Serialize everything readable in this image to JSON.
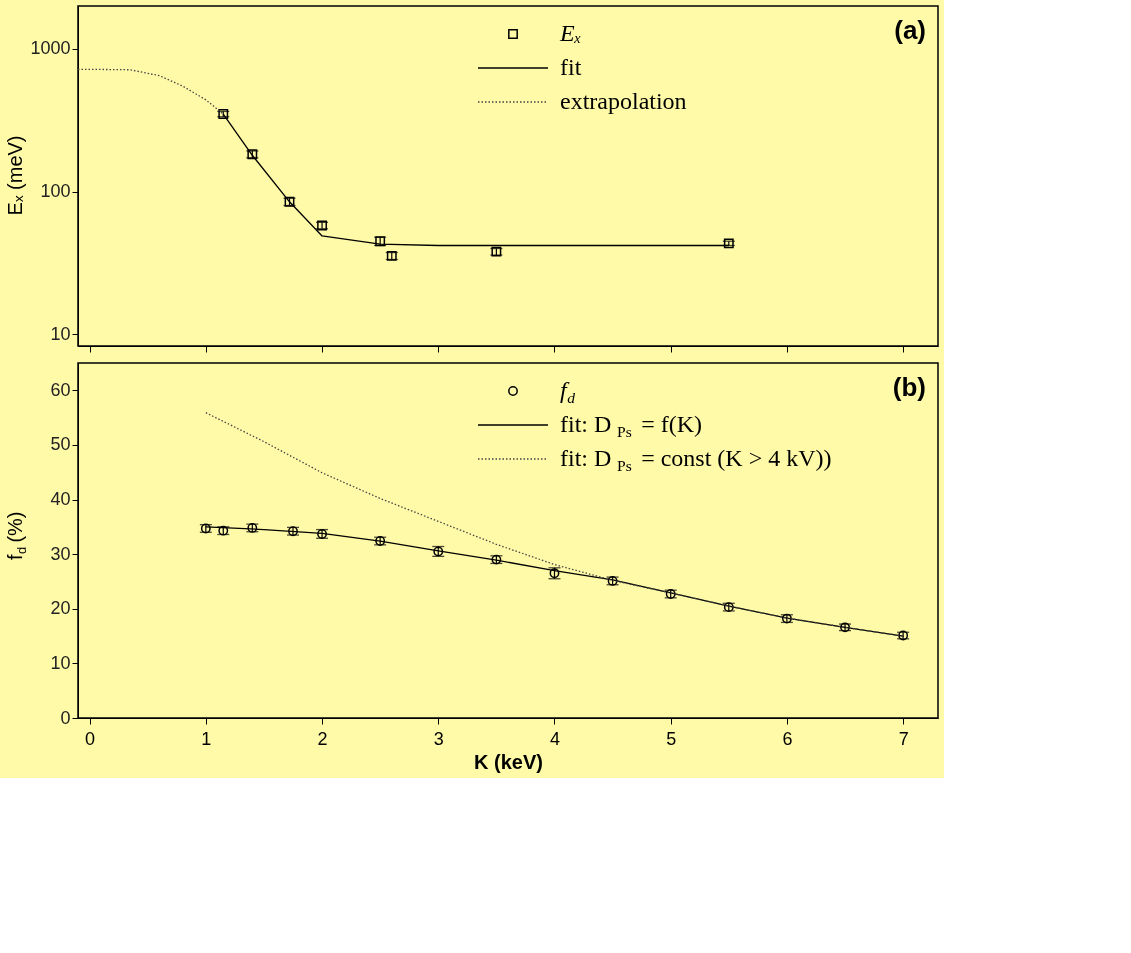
{
  "chart_data": [
    {
      "type": "scatter",
      "ylabel": "Eₓ (meV)",
      "log": "y",
      "xlim": [
        -0.1,
        7.3
      ],
      "xticks": [
        0,
        1,
        2,
        3,
        4,
        5,
        6,
        7
      ],
      "ylim": [
        8.3,
        2000
      ],
      "yticks": [
        10,
        100,
        1000
      ],
      "tick_labels": "y",
      "grid": false,
      "legend": "top right",
      "annotations": [
        "(a)"
      ],
      "series": [
        {
          "name": "Eₓ",
          "marker": "square",
          "color": "#000000",
          "x": [
            1.15,
            1.4,
            1.72,
            2.0,
            2.5,
            2.6,
            3.5,
            5.5
          ],
          "values": [
            350,
            183,
            85,
            58,
            45,
            35.5,
            38,
            43.5
          ],
          "errors": [
            15,
            10,
            5,
            3,
            3,
            2,
            2,
            1.5
          ]
        },
        {
          "name": "fit",
          "type": "line",
          "line_style": "solid",
          "color": "#000000",
          "x": [
            1.15,
            1.4,
            1.72,
            2.0,
            2.5,
            3.0,
            4.0,
            5.5
          ],
          "values": [
            350,
            180,
            85,
            49,
            43,
            42,
            42,
            42
          ]
        },
        {
          "name": "extrapolation",
          "type": "line",
          "line_style": "dotted",
          "color": "#444444",
          "x": [
            -0.1,
            0.0,
            0.35,
            0.6,
            0.8,
            1.0,
            1.15
          ],
          "values": [
            720,
            720,
            715,
            650,
            550,
            440,
            350
          ]
        }
      ]
    },
    {
      "type": "scatter",
      "xlabel": "K (keV)",
      "ylabel": "f$_{d}$ (%)",
      "xlim": [
        -0.1,
        7.3
      ],
      "xticks": [
        0,
        1,
        2,
        3,
        4,
        5,
        6,
        7
      ],
      "ylim": [
        0,
        65
      ],
      "yticks": [
        0,
        10,
        20,
        30,
        40,
        50,
        60
      ],
      "grid": false,
      "legend": "top right",
      "annotations": [
        "(b)"
      ],
      "series": [
        {
          "name": "f$_{d}$",
          "marker": "circle",
          "color": "#000000",
          "x": [
            1.0,
            1.15,
            1.4,
            1.75,
            2.0,
            2.5,
            3.0,
            3.5,
            4.0,
            4.5,
            5.0,
            5.5,
            6.0,
            6.5,
            7.0
          ],
          "values": [
            34.7,
            34.3,
            34.8,
            34.2,
            33.7,
            32.4,
            30.5,
            29.0,
            26.5,
            25.1,
            22.7,
            20.3,
            18.2,
            16.6,
            15.1
          ],
          "errors": [
            0.7,
            0.7,
            0.7,
            0.7,
            0.8,
            0.7,
            0.9,
            0.7,
            1.0,
            0.7,
            0.7,
            0.7,
            0.7,
            0.6,
            0.6
          ]
        },
        {
          "name": "fit:  D$_{Ps}$ = f(K)",
          "type": "line",
          "line_style": "solid",
          "color": "#000000",
          "x": [
            1.0,
            1.5,
            2.0,
            2.5,
            3.0,
            3.5,
            4.0,
            4.5,
            5.0,
            5.5,
            6.0,
            6.5,
            7.0
          ],
          "values": [
            35.0,
            34.5,
            33.8,
            32.4,
            30.6,
            28.9,
            27.0,
            25.3,
            22.9,
            20.5,
            18.3,
            16.6,
            15.0
          ]
        },
        {
          "name": "fit:  D$_{Ps}$ = const   (K > 4 kV))",
          "type": "line",
          "line_style": "dotted",
          "color": "#444444",
          "x": [
            1.0,
            1.5,
            2.0,
            2.5,
            3.0,
            3.5,
            4.0,
            4.5,
            5.0,
            5.5,
            6.0,
            6.5,
            7.0
          ],
          "values": [
            55.9,
            50.6,
            44.9,
            40.2,
            36.0,
            31.8,
            28.1,
            25.2,
            22.9,
            20.5,
            18.3,
            16.6,
            15.0
          ]
        }
      ]
    }
  ]
}
